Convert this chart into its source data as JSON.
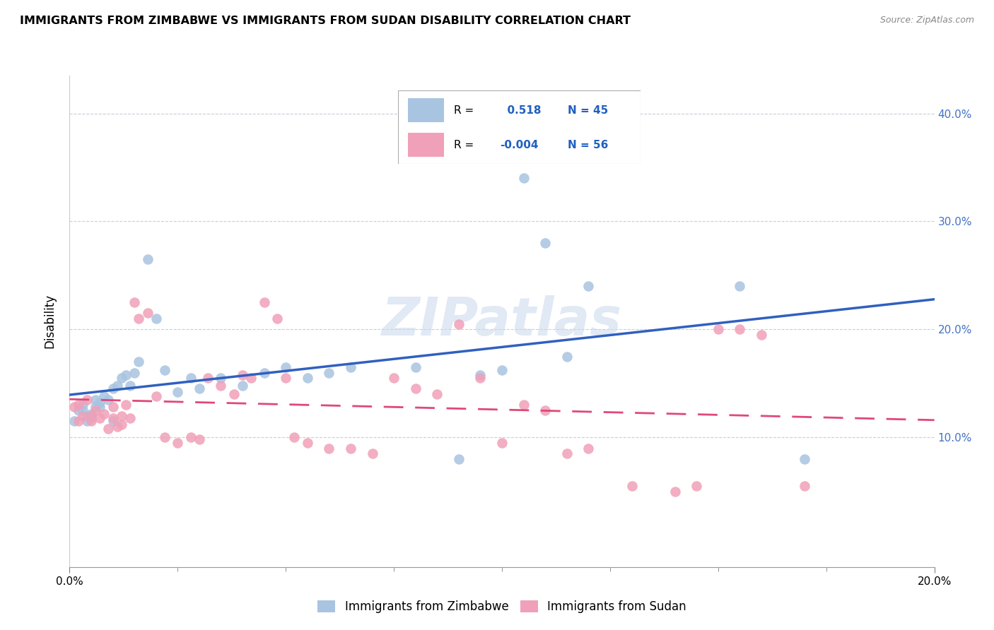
{
  "title": "IMMIGRANTS FROM ZIMBABWE VS IMMIGRANTS FROM SUDAN DISABILITY CORRELATION CHART",
  "source": "Source: ZipAtlas.com",
  "ylabel": "Disability",
  "series1_label": "Immigrants from Zimbabwe",
  "series2_label": "Immigrants from Sudan",
  "series1_color": "#a8c4e0",
  "series2_color": "#f0a0b8",
  "series1_line_color": "#3060c0",
  "series2_line_color": "#e04878",
  "series1_R": 0.518,
  "series1_N": 45,
  "series2_R": -0.004,
  "series2_N": 56,
  "watermark": "ZIPatlas",
  "xlim": [
    0.0,
    0.2
  ],
  "ylim": [
    -0.02,
    0.435
  ],
  "xtick_positions": [
    0.0,
    0.2
  ],
  "xtick_labels": [
    "0.0%",
    "20.0%"
  ],
  "xtick_minor": [
    0.025,
    0.05,
    0.075,
    0.1,
    0.125,
    0.15,
    0.175
  ],
  "yticks": [
    0.1,
    0.2,
    0.3,
    0.4
  ],
  "ytick_labels": [
    "10.0%",
    "20.0%",
    "30.0%",
    "40.0%"
  ],
  "series1_x": [
    0.001,
    0.002,
    0.003,
    0.003,
    0.004,
    0.004,
    0.005,
    0.005,
    0.006,
    0.006,
    0.007,
    0.007,
    0.008,
    0.009,
    0.01,
    0.01,
    0.011,
    0.012,
    0.013,
    0.014,
    0.015,
    0.016,
    0.018,
    0.02,
    0.022,
    0.025,
    0.028,
    0.03,
    0.035,
    0.04,
    0.045,
    0.05,
    0.055,
    0.06,
    0.065,
    0.08,
    0.09,
    0.095,
    0.1,
    0.105,
    0.11,
    0.115,
    0.12,
    0.155,
    0.17
  ],
  "series1_y": [
    0.115,
    0.125,
    0.125,
    0.13,
    0.12,
    0.115,
    0.118,
    0.122,
    0.128,
    0.135,
    0.128,
    0.132,
    0.138,
    0.135,
    0.145,
    0.115,
    0.148,
    0.155,
    0.158,
    0.148,
    0.16,
    0.17,
    0.265,
    0.21,
    0.162,
    0.142,
    0.155,
    0.145,
    0.155,
    0.148,
    0.16,
    0.165,
    0.155,
    0.16,
    0.165,
    0.165,
    0.08,
    0.158,
    0.162,
    0.34,
    0.28,
    0.175,
    0.24,
    0.24,
    0.08
  ],
  "series2_x": [
    0.001,
    0.002,
    0.002,
    0.003,
    0.004,
    0.005,
    0.005,
    0.006,
    0.007,
    0.008,
    0.009,
    0.01,
    0.01,
    0.011,
    0.012,
    0.012,
    0.013,
    0.014,
    0.015,
    0.016,
    0.018,
    0.02,
    0.022,
    0.025,
    0.028,
    0.03,
    0.032,
    0.035,
    0.038,
    0.04,
    0.042,
    0.045,
    0.048,
    0.05,
    0.052,
    0.055,
    0.06,
    0.065,
    0.07,
    0.075,
    0.08,
    0.085,
    0.09,
    0.095,
    0.1,
    0.105,
    0.11,
    0.115,
    0.12,
    0.13,
    0.14,
    0.145,
    0.15,
    0.155,
    0.16,
    0.17
  ],
  "series2_y": [
    0.128,
    0.13,
    0.115,
    0.12,
    0.135,
    0.12,
    0.115,
    0.125,
    0.118,
    0.122,
    0.108,
    0.118,
    0.128,
    0.11,
    0.12,
    0.112,
    0.13,
    0.118,
    0.225,
    0.21,
    0.215,
    0.138,
    0.1,
    0.095,
    0.1,
    0.098,
    0.155,
    0.148,
    0.14,
    0.158,
    0.155,
    0.225,
    0.21,
    0.155,
    0.1,
    0.095,
    0.09,
    0.09,
    0.085,
    0.155,
    0.145,
    0.14,
    0.205,
    0.155,
    0.095,
    0.13,
    0.125,
    0.085,
    0.09,
    0.055,
    0.05,
    0.055,
    0.2,
    0.2,
    0.195,
    0.055
  ]
}
